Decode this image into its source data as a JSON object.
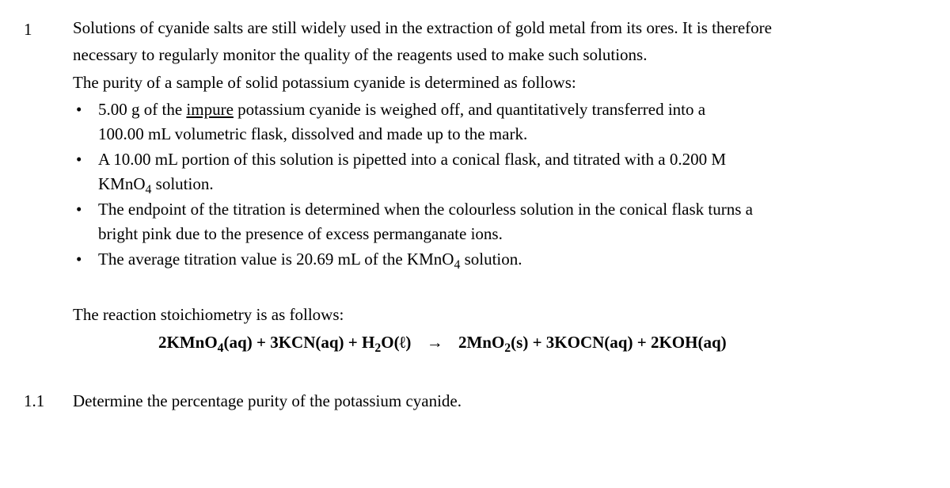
{
  "question": {
    "number": "1",
    "intro_line1": "Solutions of cyanide salts are still widely used in the extraction of gold metal from its ores. It is therefore",
    "intro_line2": "necessary to regularly monitor the quality of the reagents used to make such solutions.",
    "intro_line3": "The purity of a sample of solid potassium cyanide is determined as follows:",
    "bullets": [
      {
        "prefix": "5.00 g of the ",
        "underlined": "impure",
        "suffix": " potassium cyanide is weighed off, and quantitatively transferred into a",
        "line2": "100.00 mL volumetric flask, dissolved and made up to the mark."
      },
      {
        "line1": "A 10.00 mL portion of this solution is pipetted into a conical flask, and titrated with a 0.200 M",
        "line2_prefix": "KMnO",
        "line2_sub": "4",
        "line2_suffix": " solution."
      },
      {
        "line1": "The endpoint of the titration is determined when the colourless solution in the conical flask turns a",
        "line2": "bright pink due to the presence of excess permanganate ions."
      },
      {
        "line1_prefix": "The average titration value is 20.69 mL of the KMnO",
        "line1_sub": "4",
        "line1_suffix": " solution."
      }
    ],
    "stoich_intro": "The reaction stoichiometry is as follows:",
    "equation": {
      "lhs_parts": [
        {
          "coef": "2",
          "species": "KMnO",
          "sub": "4",
          "state": "(aq)"
        },
        {
          "plus": " + ",
          "coef": "3",
          "species": "KCN",
          "state": "(aq)"
        },
        {
          "plus": " +  ",
          "species": "H",
          "sub": "2",
          "species2": "O",
          "state": "(ℓ)"
        }
      ],
      "arrow": "→",
      "rhs_parts": [
        {
          "coef": "2",
          "species": "MnO",
          "sub": "2",
          "state": "(s)"
        },
        {
          "plus": " + ",
          "coef": "3",
          "species": "KOCN",
          "state": "(aq)"
        },
        {
          "plus": " + ",
          "coef": "2",
          "species": "KOH",
          "state": "(aq)"
        }
      ]
    }
  },
  "subquestion": {
    "number": "1.1",
    "text": "Determine the percentage purity of the potassium cyanide."
  }
}
